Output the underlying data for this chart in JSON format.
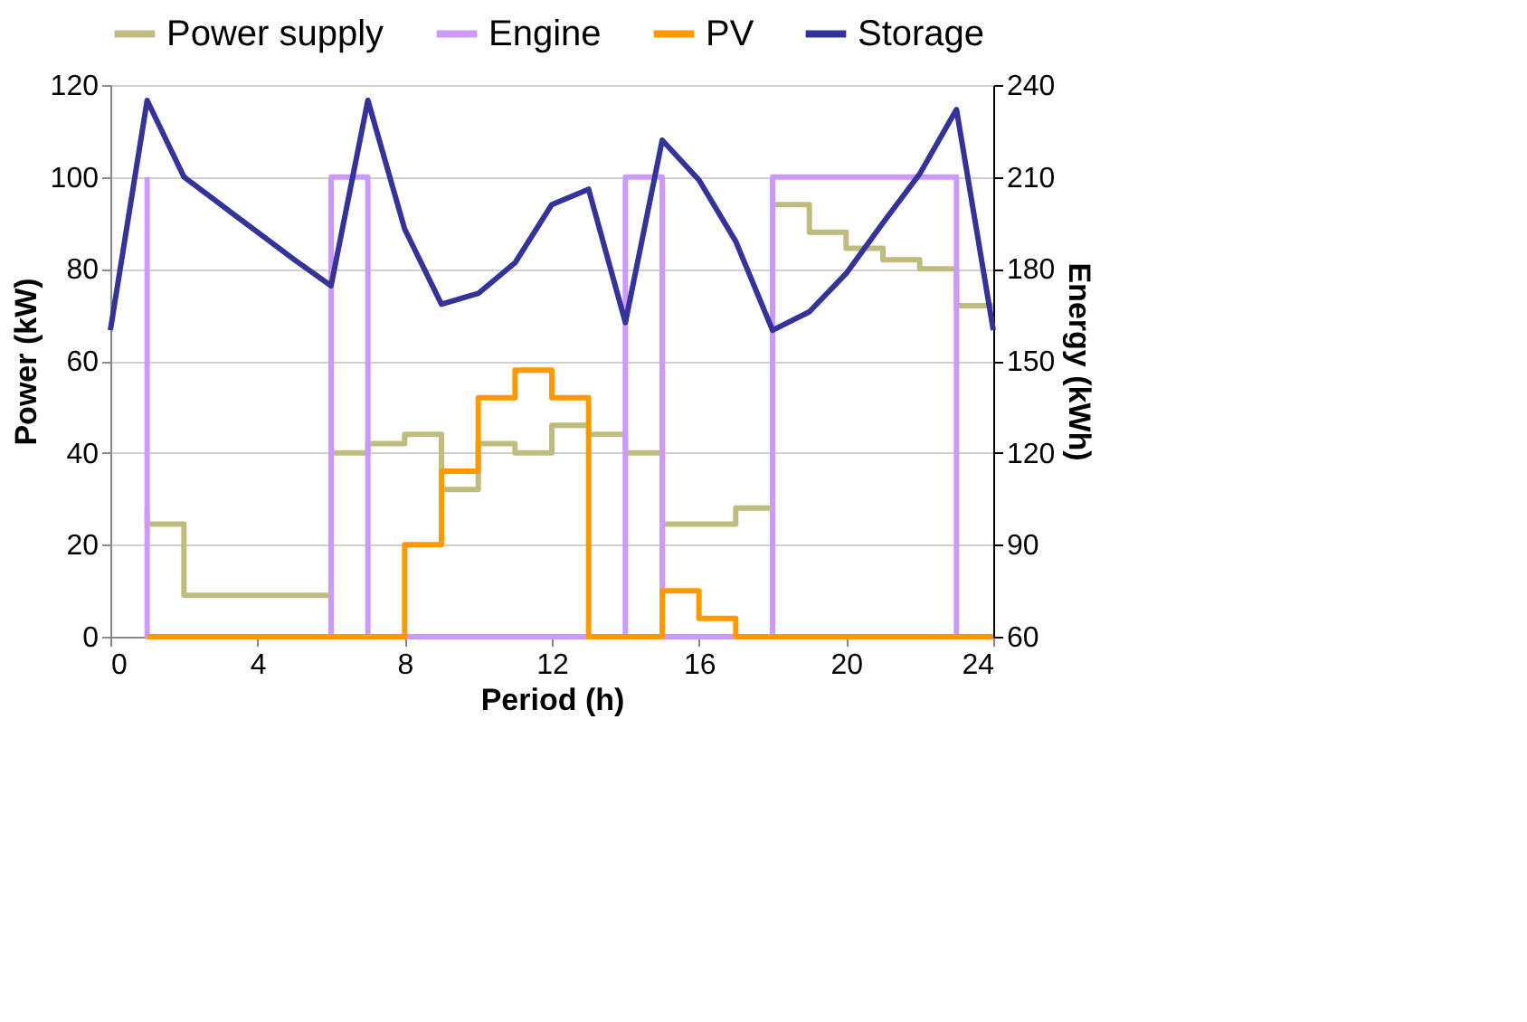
{
  "chart_data": {
    "type": "line",
    "xlabel": "Period (h)",
    "ylabel": "Power (kW)",
    "y2label": "Energy (kWh)",
    "xlim": [
      0,
      24
    ],
    "xticks": [
      0,
      4,
      8,
      12,
      16,
      20,
      24
    ],
    "ylim": [
      0,
      120
    ],
    "yticks": [
      0,
      20,
      40,
      60,
      80,
      100,
      120
    ],
    "y2lim": [
      60,
      240
    ],
    "y2ticks": [
      60,
      90,
      120,
      150,
      180,
      210,
      240
    ],
    "grid": "y",
    "legend": "top",
    "series": [
      {
        "name": "Power supply",
        "type": "step",
        "color": "#c0bc80",
        "x": [
          1,
          1,
          2,
          6,
          7,
          8,
          9,
          10,
          11,
          12,
          13,
          14,
          15,
          17,
          18,
          19,
          20,
          21,
          22,
          23,
          24
        ],
        "values": [
          27,
          24.5,
          9,
          40,
          42,
          44,
          32,
          42,
          40,
          46,
          44,
          40,
          24.5,
          28,
          94,
          88,
          84.5,
          82,
          80,
          72,
          72
        ]
      },
      {
        "name": "Engine",
        "type": "step",
        "color": "#cc99ff",
        "x": [
          1,
          1,
          6,
          7,
          14,
          15,
          18,
          23,
          24
        ],
        "values": [
          100,
          0,
          100,
          0,
          100,
          0,
          100,
          0,
          0
        ]
      },
      {
        "name": "PV",
        "type": "step",
        "color": "#ff9900",
        "x": [
          1,
          8,
          9,
          10,
          11,
          12,
          13,
          15,
          16,
          17,
          24
        ],
        "values": [
          0,
          20,
          36,
          52,
          58,
          52,
          0,
          10,
          4,
          0,
          0
        ]
      },
      {
        "name": "Storage",
        "type": "line",
        "axis": "y2",
        "color": "#333399",
        "x": [
          0,
          1,
          2,
          3,
          4,
          5,
          6,
          7,
          8,
          9,
          10,
          11,
          12,
          13,
          14,
          15,
          16,
          17,
          18,
          19,
          20,
          21,
          22,
          23,
          24
        ],
        "values": [
          160,
          235,
          210,
          201,
          192,
          183,
          174.5,
          235,
          193,
          168.5,
          172,
          182,
          201,
          206,
          162.5,
          222,
          209,
          189,
          160,
          166,
          178.5,
          195,
          211,
          232,
          160
        ]
      }
    ]
  }
}
